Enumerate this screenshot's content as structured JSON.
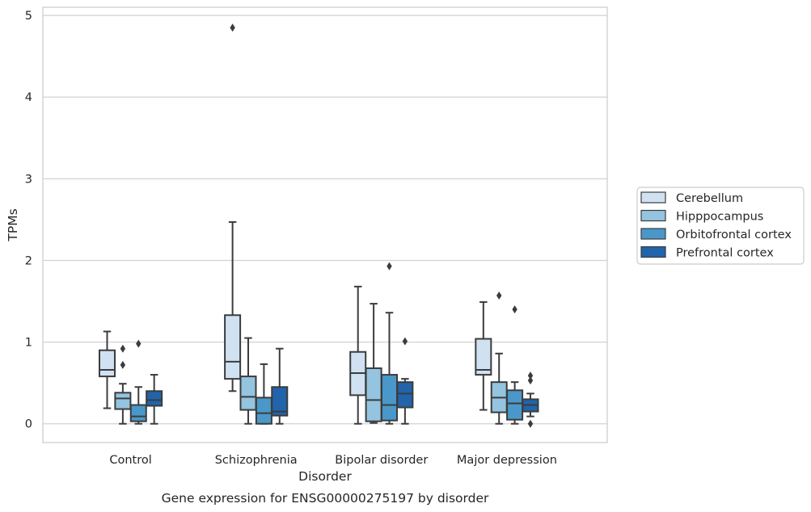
{
  "chart_data": {
    "type": "boxplot",
    "caption": "Gene expression for ENSG00000275197 by disorder",
    "xlabel": "Disorder",
    "ylabel": "TPMs",
    "ylim": [
      -0.23,
      5.1
    ],
    "yticks": [
      0,
      1,
      2,
      3,
      4,
      5
    ],
    "grid": true,
    "legend_position": "right",
    "categories": [
      "Control",
      "Schizophrenia",
      "Bipolar disorder",
      "Major depression"
    ],
    "series": [
      {
        "name": "Cerebellum",
        "color": "#d0e1f2",
        "boxes": [
          {
            "whislo": 0.19,
            "q1": 0.58,
            "med": 0.66,
            "q3": 0.9,
            "whishi": 1.13,
            "fliers": []
          },
          {
            "whislo": 0.4,
            "q1": 0.55,
            "med": 0.76,
            "q3": 1.33,
            "whishi": 2.47,
            "fliers": [
              4.85
            ]
          },
          {
            "whislo": 0.0,
            "q1": 0.35,
            "med": 0.62,
            "q3": 0.88,
            "whishi": 1.68,
            "fliers": []
          },
          {
            "whislo": 0.17,
            "q1": 0.6,
            "med": 0.66,
            "q3": 1.04,
            "whishi": 1.49,
            "fliers": []
          }
        ]
      },
      {
        "name": "Hipppocampus",
        "color": "#94c4df",
        "boxes": [
          {
            "whislo": 0.0,
            "q1": 0.18,
            "med": 0.31,
            "q3": 0.38,
            "whishi": 0.49,
            "fliers": [
              0.72,
              0.92
            ]
          },
          {
            "whislo": 0.0,
            "q1": 0.17,
            "med": 0.33,
            "q3": 0.58,
            "whishi": 1.05,
            "fliers": []
          },
          {
            "whislo": 0.01,
            "q1": 0.03,
            "med": 0.29,
            "q3": 0.68,
            "whishi": 1.47,
            "fliers": []
          },
          {
            "whislo": 0.0,
            "q1": 0.14,
            "med": 0.32,
            "q3": 0.51,
            "whishi": 0.86,
            "fliers": [
              1.57
            ]
          }
        ]
      },
      {
        "name": "Orbitofrontal cortex",
        "color": "#4a98c9",
        "boxes": [
          {
            "whislo": 0.0,
            "q1": 0.03,
            "med": 0.09,
            "q3": 0.23,
            "whishi": 0.45,
            "fliers": [
              0.98
            ]
          },
          {
            "whislo": 0.0,
            "q1": 0.0,
            "med": 0.13,
            "q3": 0.32,
            "whishi": 0.73,
            "fliers": []
          },
          {
            "whislo": 0.0,
            "q1": 0.04,
            "med": 0.23,
            "q3": 0.6,
            "whishi": 1.36,
            "fliers": [
              1.93
            ]
          },
          {
            "whislo": 0.0,
            "q1": 0.05,
            "med": 0.25,
            "q3": 0.41,
            "whishi": 0.51,
            "fliers": [
              1.4
            ]
          }
        ]
      },
      {
        "name": "Prefrontal cortex",
        "color": "#2164ab",
        "boxes": [
          {
            "whislo": 0.0,
            "q1": 0.22,
            "med": 0.29,
            "q3": 0.4,
            "whishi": 0.6,
            "fliers": []
          },
          {
            "whislo": 0.0,
            "q1": 0.1,
            "med": 0.15,
            "q3": 0.45,
            "whishi": 0.92,
            "fliers": []
          },
          {
            "whislo": 0.0,
            "q1": 0.2,
            "med": 0.37,
            "q3": 0.51,
            "whishi": 0.55,
            "fliers": [
              1.01
            ]
          },
          {
            "whislo": 0.09,
            "q1": 0.15,
            "med": 0.23,
            "q3": 0.3,
            "whishi": 0.37,
            "fliers": [
              0.0,
              0.53,
              0.59
            ]
          }
        ]
      }
    ]
  }
}
